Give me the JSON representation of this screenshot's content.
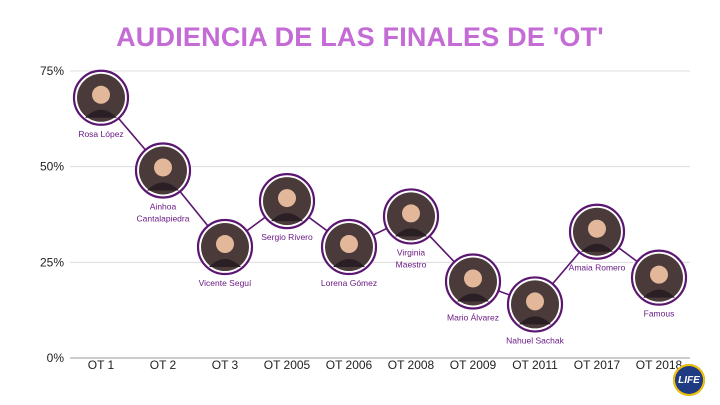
{
  "colors": {
    "title": "#c46bd6",
    "line": "#5a1670",
    "label": "#6a1b84",
    "grid": "#dcdcdc",
    "axis": "#9a9a9a",
    "photo_ring": "#5a1670",
    "logo_bg": "#1f3b84",
    "logo_text": "#ffffff",
    "logo_accent": "#f2c200"
  },
  "brand": {
    "logo": "LIFE"
  },
  "chart_data": {
    "type": "line",
    "title": "AUDIENCIA DE LAS FINALES DE 'OT'",
    "xlabel": "",
    "ylabel": "",
    "categories": [
      "OT 1",
      "OT 2",
      "OT 3",
      "OT 2005",
      "OT 2006",
      "OT 2008",
      "OT 2009",
      "OT 2011",
      "OT 2017",
      "OT 2018"
    ],
    "yticks": [
      "0%",
      "25%",
      "50%",
      "75%"
    ],
    "ylim": [
      0,
      75
    ],
    "grid": true,
    "series": [
      {
        "values": [
          68.0,
          49.0,
          29.0,
          41.0,
          29.0,
          37.0,
          20.0,
          14.0,
          33.0,
          21.0
        ],
        "point_labels": [
          [
            "Rosa López"
          ],
          [
            "Ainhoa",
            "Cantalapiedra"
          ],
          [
            "Vicente Seguí"
          ],
          [
            "Sergio Rivero"
          ],
          [
            "Lorena Gómez"
          ],
          [
            "Virginia",
            "Maestro"
          ],
          [
            "Mario Álvarez"
          ],
          [
            "Nahuel Sachak"
          ],
          [
            "Amaia Romero"
          ],
          [
            "Famous"
          ]
        ],
        "photo_icons": [
          "photo-icon",
          "photo-icon",
          "photo-icon",
          "photo-icon",
          "photo-icon",
          "photo-icon",
          "photo-icon",
          "photo-icon",
          "photo-icon",
          "photo-icon"
        ]
      }
    ]
  }
}
